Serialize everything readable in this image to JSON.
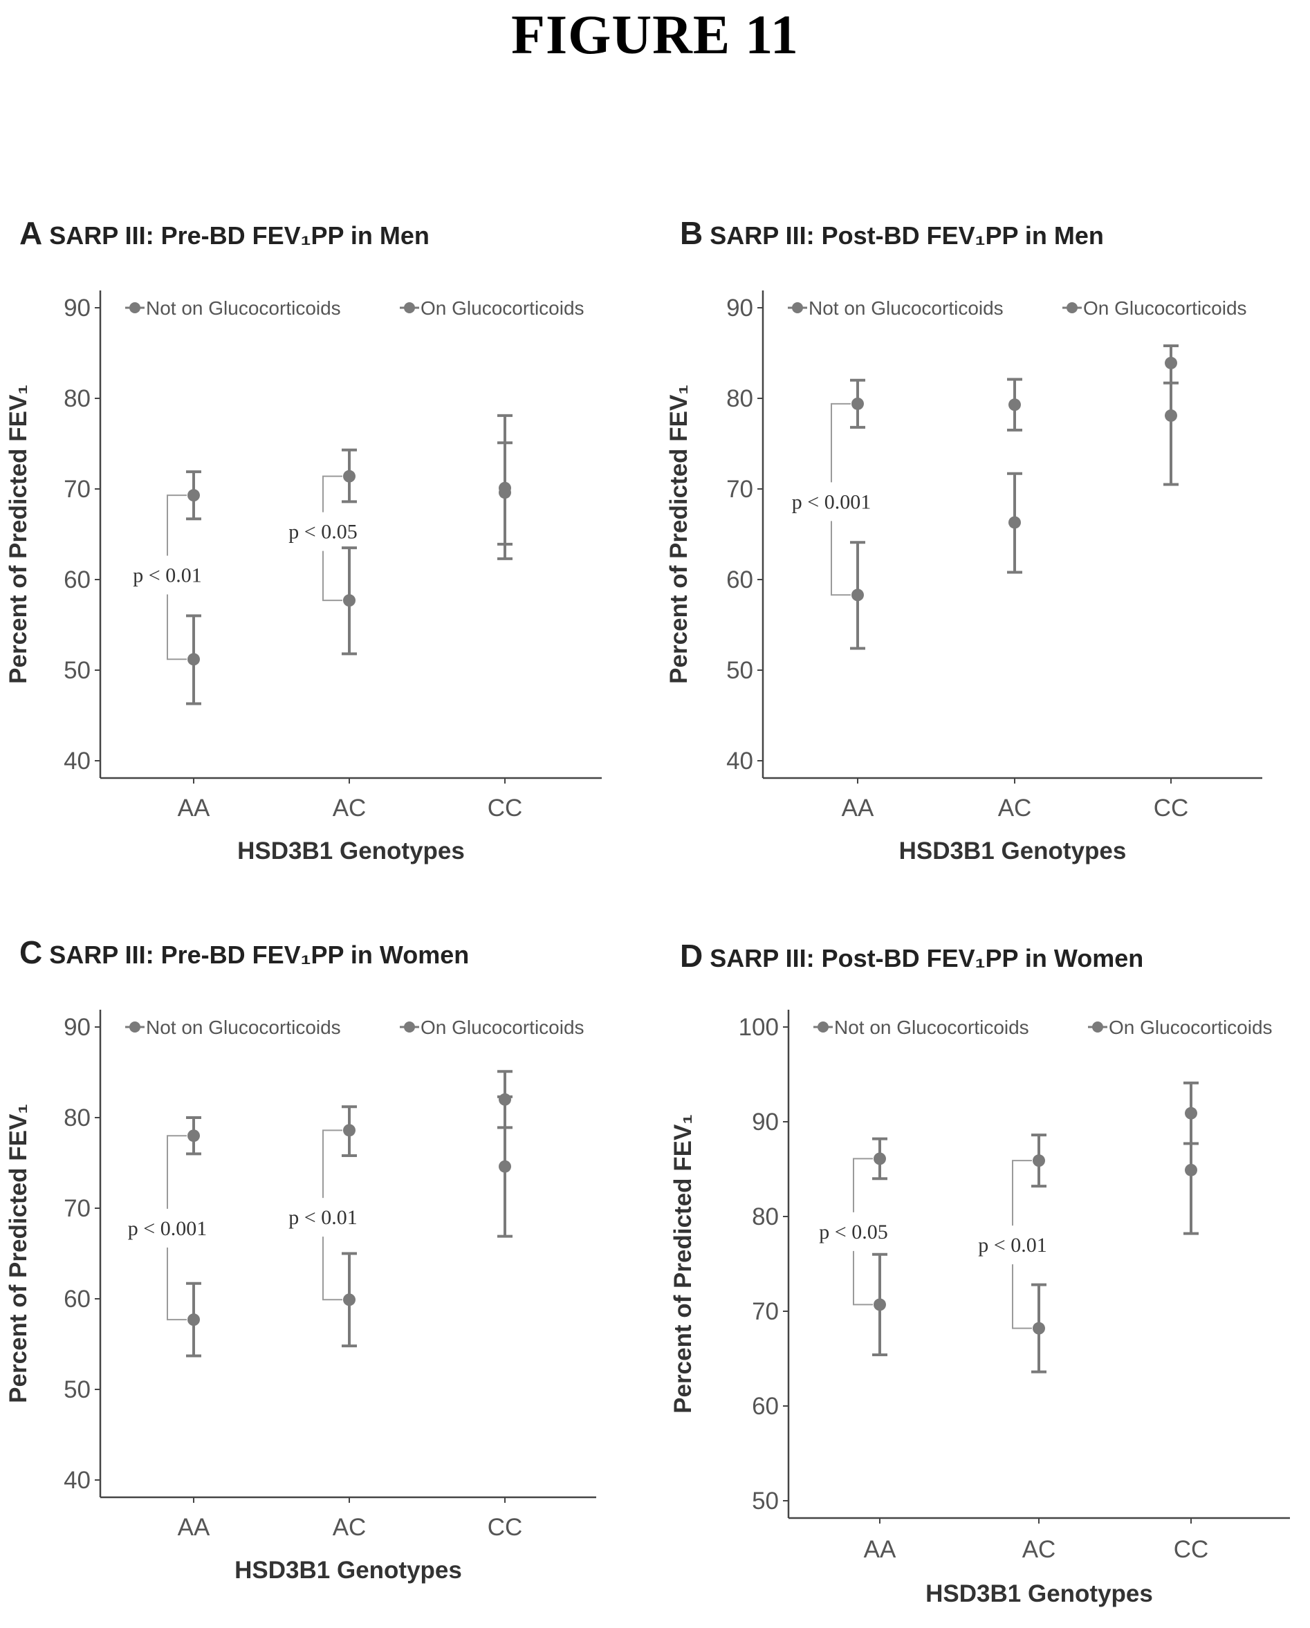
{
  "figure_title": "FIGURE 11",
  "colors": {
    "marker": "#7a7a7a",
    "axis": "#444444",
    "bracket": "#9a9a9a"
  },
  "chart_data": [
    {
      "letter": "A",
      "title": "SARP III: Pre-BD FEV₁PP in Men",
      "type": "scatter",
      "xlabel": "HSD3B1 Genotypes",
      "ylabel": "Percent of Predicted FEV₁",
      "categories": [
        "AA",
        "AC",
        "CC"
      ],
      "ylim": [
        40,
        90
      ],
      "yticks": [
        40,
        50,
        60,
        70,
        80,
        90
      ],
      "legend": [
        "Not on Glucocorticoids",
        "On Glucocorticoids"
      ],
      "legend_position": "top",
      "series": [
        {
          "name": "Not on Glucocorticoids",
          "values": [
            69.3,
            71.4,
            70.1
          ],
          "lower": [
            66.7,
            68.6,
            62.3
          ],
          "upper": [
            71.9,
            74.3,
            78.1
          ]
        },
        {
          "name": "On Glucocorticoids",
          "values": [
            51.2,
            57.7,
            69.6
          ],
          "lower": [
            46.3,
            51.8,
            63.9
          ],
          "upper": [
            56.0,
            63.5,
            75.1
          ]
        }
      ],
      "annotations": [
        {
          "label": "p < 0.01",
          "category": "AA",
          "y_top": 69.3,
          "y_bottom": 51.2,
          "text_y": 60.5
        },
        {
          "label": "p < 0.05",
          "category": "AC",
          "y_top": 71.4,
          "y_bottom": 57.7,
          "text_y": 65.3
        }
      ]
    },
    {
      "letter": "B",
      "title": "SARP III: Post-BD FEV₁PP in Men",
      "type": "scatter",
      "xlabel": "HSD3B1 Genotypes",
      "ylabel": "Percent of Predicted FEV₁",
      "categories": [
        "AA",
        "AC",
        "CC"
      ],
      "ylim": [
        40,
        90
      ],
      "yticks": [
        40,
        50,
        60,
        70,
        80,
        90
      ],
      "legend": [
        "Not on Glucocorticoids",
        "On Glucocorticoids"
      ],
      "legend_position": "top",
      "series": [
        {
          "name": "Not on Glucocorticoids",
          "values": [
            79.4,
            79.3,
            83.9
          ],
          "lower": [
            76.8,
            76.5,
            81.7
          ],
          "upper": [
            82.0,
            82.1,
            85.8
          ]
        },
        {
          "name": "On Glucocorticoids",
          "values": [
            58.3,
            66.3,
            78.1
          ],
          "lower": [
            52.4,
            60.8,
            70.5
          ],
          "upper": [
            64.1,
            71.7,
            85.8
          ]
        }
      ],
      "annotations": [
        {
          "label": "p < 0.001",
          "category": "AA",
          "y_top": 79.4,
          "y_bottom": 58.3,
          "text_y": 68.6
        }
      ]
    },
    {
      "letter": "C",
      "title": "SARP III: Pre-BD FEV₁PP in Women",
      "type": "scatter",
      "xlabel": "HSD3B1 Genotypes",
      "ylabel": "Percent of Predicted FEV₁",
      "categories": [
        "AA",
        "AC",
        "CC"
      ],
      "ylim": [
        40,
        90
      ],
      "yticks": [
        40,
        50,
        60,
        70,
        80,
        90
      ],
      "legend": [
        "Not on Glucocorticoids",
        "On Glucocorticoids"
      ],
      "legend_position": "top",
      "series": [
        {
          "name": "Not on Glucocorticoids",
          "values": [
            78.0,
            78.6,
            82.0
          ],
          "lower": [
            76.0,
            75.8,
            78.9
          ],
          "upper": [
            80.0,
            81.2,
            85.1
          ]
        },
        {
          "name": "On Glucocorticoids",
          "values": [
            57.7,
            59.9,
            74.6
          ],
          "lower": [
            53.7,
            54.8,
            66.9
          ],
          "upper": [
            61.7,
            65.0,
            82.3
          ]
        }
      ],
      "annotations": [
        {
          "label": "p < 0.001",
          "category": "AA",
          "y_top": 78.0,
          "y_bottom": 57.7,
          "text_y": 67.8
        },
        {
          "label": "p < 0.01",
          "category": "AC",
          "y_top": 78.6,
          "y_bottom": 59.9,
          "text_y": 69.0
        }
      ]
    },
    {
      "letter": "D",
      "title": "SARP III: Post-BD FEV₁PP in Women",
      "type": "scatter",
      "xlabel": "HSD3B1 Genotypes",
      "ylabel": "Percent of Predicted FEV₁",
      "categories": [
        "AA",
        "AC",
        "CC"
      ],
      "ylim": [
        50,
        100
      ],
      "yticks": [
        50,
        60,
        70,
        80,
        90,
        100
      ],
      "legend": [
        "Not on Glucocorticoids",
        "On Glucocorticoids"
      ],
      "legend_position": "top",
      "series": [
        {
          "name": "Not on Glucocorticoids",
          "values": [
            86.1,
            85.9,
            90.9
          ],
          "lower": [
            84.0,
            83.2,
            87.7
          ],
          "upper": [
            88.2,
            88.6,
            94.1
          ]
        },
        {
          "name": "On Glucocorticoids",
          "values": [
            70.7,
            68.2,
            84.9
          ],
          "lower": [
            65.4,
            63.6,
            78.2
          ],
          "upper": [
            76.0,
            72.8,
            87.7
          ]
        }
      ],
      "annotations": [
        {
          "label": "p < 0.05",
          "category": "AA",
          "y_top": 86.1,
          "y_bottom": 70.7,
          "text_y": 78.4
        },
        {
          "label": "p < 0.01",
          "category": "AC",
          "y_top": 85.9,
          "y_bottom": 68.2,
          "text_y": 77.0
        }
      ]
    }
  ]
}
